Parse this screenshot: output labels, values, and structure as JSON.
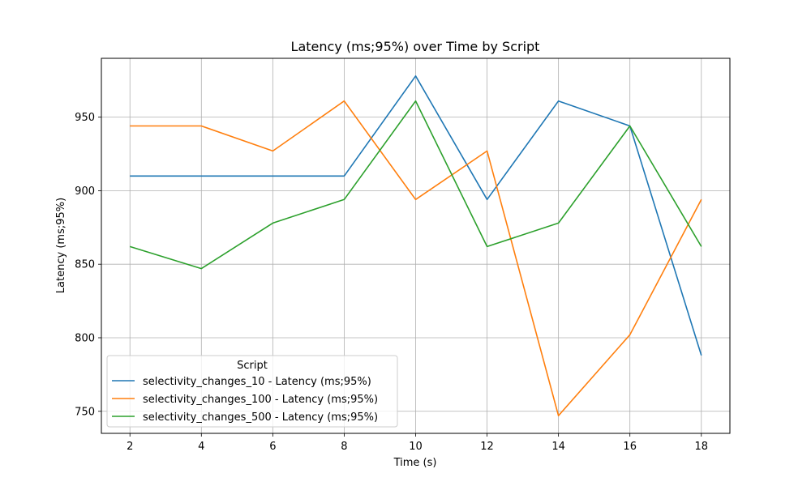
{
  "chart_data": {
    "type": "line",
    "title": "Latency (ms;95%) over Time by Script",
    "xlabel": "Time (s)",
    "ylabel": "Latency (ms;95%)",
    "x": [
      2,
      4,
      6,
      8,
      10,
      12,
      14,
      16,
      18
    ],
    "x_ticks": [
      2,
      4,
      6,
      8,
      10,
      12,
      14,
      16,
      18
    ],
    "y_ticks": [
      750,
      800,
      850,
      900,
      950
    ],
    "xlim": [
      1.2,
      18.8
    ],
    "ylim": [
      735,
      990
    ],
    "grid": true,
    "legend": {
      "title": "Script",
      "placement": "lower-left"
    },
    "series": [
      {
        "name": "selectivity_changes_10 - Latency (ms;95%)",
        "color": "#1f77b4",
        "values": [
          910,
          910,
          910,
          910,
          978,
          894,
          961,
          944,
          788
        ]
      },
      {
        "name": "selectivity_changes_100 - Latency (ms;95%)",
        "color": "#ff7f0e",
        "values": [
          944,
          944,
          927,
          961,
          894,
          927,
          747,
          802,
          894
        ]
      },
      {
        "name": "selectivity_changes_500 - Latency (ms;95%)",
        "color": "#2ca02c",
        "values": [
          862,
          847,
          878,
          894,
          961,
          862,
          878,
          944,
          862
        ]
      }
    ]
  }
}
